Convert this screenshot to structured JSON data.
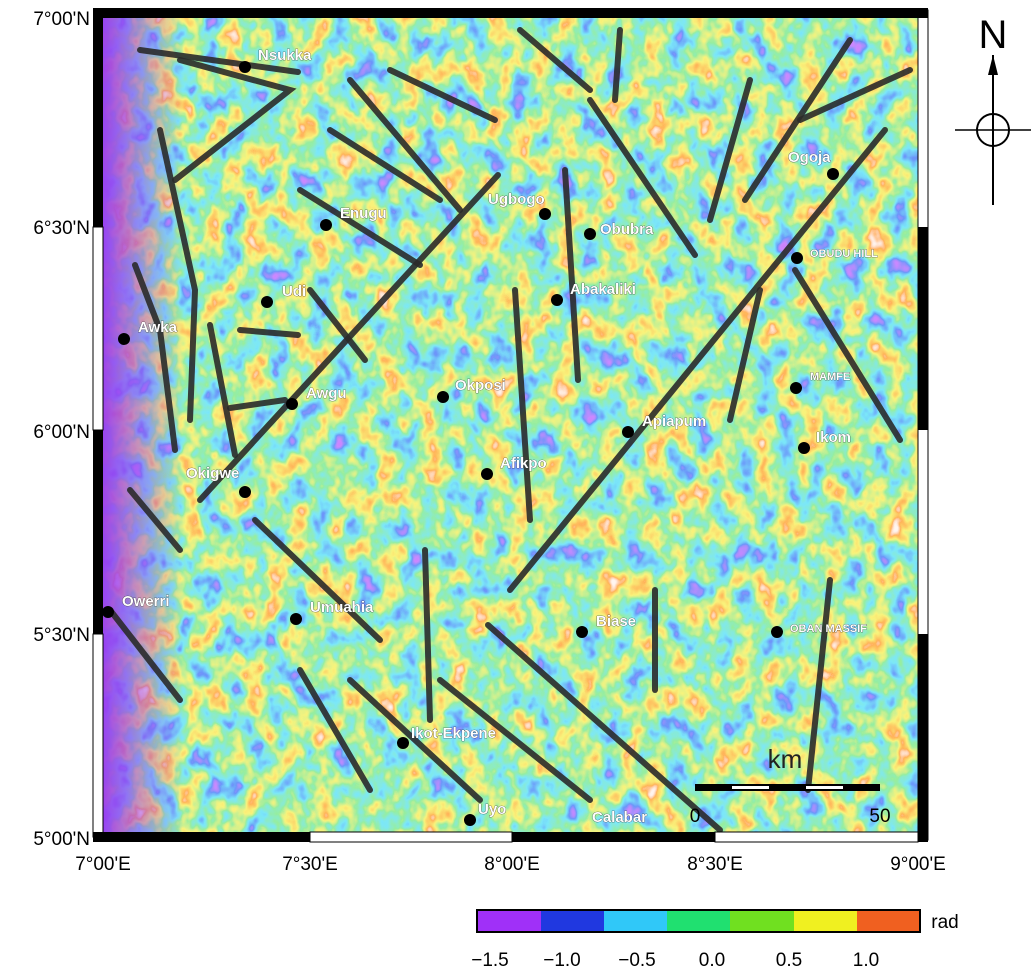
{
  "map": {
    "lat_labels": [
      "7°00'N",
      "6°30'N",
      "6°00'N",
      "5°30'N",
      "5°00'N"
    ],
    "lon_labels": [
      "7°00'E",
      "7°30'E",
      "8°00'E",
      "8°30'E",
      "9°00'E"
    ],
    "places": [
      "Nsukka",
      "Enugu",
      "Udi",
      "Awka",
      "Awgu",
      "Okigwe",
      "Owerri",
      "Umuahia",
      "Ikot-Ekpene",
      "Uyo",
      "Calabar",
      "Ugbogo",
      "Obubra",
      "Abakaliki",
      "Okposi",
      "Afikpo",
      "Apiapum",
      "Biase",
      "OBUDU HILL",
      "Ogoja",
      "MAMFE",
      "Ikom",
      "OBAN MASSIF"
    ],
    "north_label": "N",
    "scale_bar": {
      "unit": "km",
      "labels": [
        "0",
        "50"
      ]
    },
    "colorbar": {
      "unit": "rad",
      "ticks": [
        "−1.5",
        "−1.0",
        "−0.5",
        "0.0",
        "0.5",
        "1.0"
      ]
    }
  }
}
